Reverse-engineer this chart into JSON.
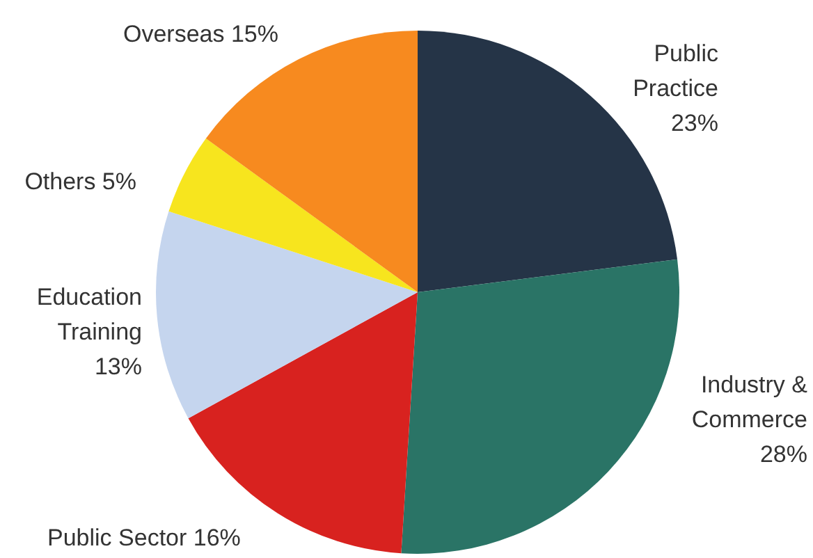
{
  "chart_data": {
    "type": "pie",
    "categories": [
      "Public Practice",
      "Industry & Commerce",
      "Public Sector",
      "Education Training",
      "Others",
      "Overseas"
    ],
    "values": [
      23,
      28,
      16,
      13,
      5,
      15
    ],
    "value_labels": [
      "23%",
      "28%",
      "16%",
      "13%",
      "5%",
      "15%"
    ],
    "colors": [
      "#253447",
      "#2a7466",
      "#d8221f",
      "#c5d5ee",
      "#f7e51e",
      "#f78a1f"
    ]
  }
}
